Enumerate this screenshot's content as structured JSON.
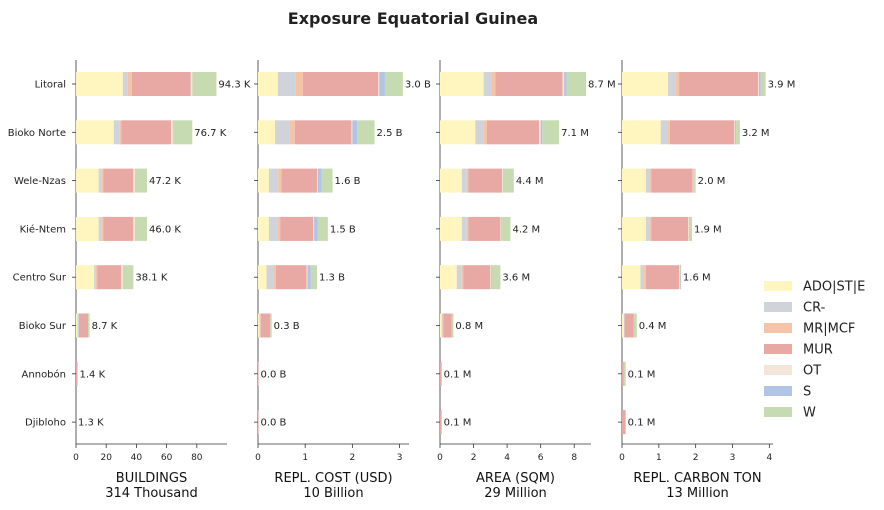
{
  "chart_data": {
    "type": "bar",
    "orientation": "horizontal-stacked",
    "title": "Exposure Equatorial Guinea",
    "categories": [
      "Litoral",
      "Bioko Norte",
      "Wele-Nzas",
      "Kié-Ntem",
      "Centro Sur",
      "Bioko Sur",
      "Annobón",
      "Djibloho"
    ],
    "legend": {
      "placement": "right",
      "entries": [
        {
          "name": "ADO|ST|E",
          "color": "#fff6bf"
        },
        {
          "name": "CR-",
          "color": "#d1d3da"
        },
        {
          "name": "MR|MCF",
          "color": "#f5c4a6"
        },
        {
          "name": "MUR",
          "color": "#e8a8a4"
        },
        {
          "name": "OT",
          "color": "#f3e6d8"
        },
        {
          "name": "S",
          "color": "#b0c4e6"
        },
        {
          "name": "W",
          "color": "#c6dbb1"
        }
      ]
    },
    "panels": [
      {
        "xlabel": "BUILDINGS",
        "xlabel2": "314 Thousand",
        "xlim": [
          0,
          100
        ],
        "ticks": [
          0,
          20,
          40,
          60,
          80
        ],
        "tick_labels": [
          "0",
          "20",
          "40",
          "60",
          "80"
        ],
        "totals_labels": [
          "94.3 K",
          "76.7 K",
          "47.2 K",
          "46.0 K",
          "38.1 K",
          "8.7 K",
          "1.4 K",
          "1.3 K"
        ],
        "segments": [
          [
            31,
            3,
            3,
            39,
            1,
            0,
            16
          ],
          [
            25,
            4,
            1,
            33,
            1,
            0,
            13
          ],
          [
            15,
            2,
            1,
            20,
            1,
            0,
            8
          ],
          [
            15,
            2,
            1,
            20,
            1,
            0,
            8
          ],
          [
            12,
            1,
            1,
            16,
            1,
            0,
            7
          ],
          [
            1,
            1,
            0,
            6,
            0,
            0,
            1
          ],
          [
            0,
            0,
            0,
            1,
            0,
            0,
            0
          ],
          [
            0,
            0,
            0,
            0,
            0,
            0,
            0
          ]
        ]
      },
      {
        "xlabel": "REPL. COST (USD)",
        "xlabel2": "10 Billion",
        "xlim": [
          0,
          3.2
        ],
        "ticks": [
          0,
          1,
          2,
          3
        ],
        "tick_labels": [
          "0",
          "1",
          "2",
          "3"
        ],
        "totals_labels": [
          "3.0 B",
          "2.5 B",
          "1.6 B",
          "1.5 B",
          "1.3 B",
          "0.3 B",
          "0.0 B",
          "0.0 B"
        ],
        "segments": [
          [
            0.42,
            0.38,
            0.15,
            1.6,
            0.02,
            0.12,
            0.38
          ],
          [
            0.36,
            0.32,
            0.1,
            1.2,
            0.02,
            0.1,
            0.37
          ],
          [
            0.23,
            0.2,
            0.07,
            0.75,
            0.02,
            0.08,
            0.23
          ],
          [
            0.23,
            0.18,
            0.06,
            0.7,
            0.02,
            0.07,
            0.22
          ],
          [
            0.18,
            0.15,
            0.05,
            0.65,
            0.02,
            0.07,
            0.13
          ],
          [
            0.03,
            0.02,
            0.01,
            0.2,
            0,
            0,
            0.03
          ],
          [
            0,
            0,
            0,
            0.01,
            0,
            0,
            0
          ],
          [
            0,
            0,
            0,
            0.01,
            0,
            0,
            0
          ]
        ]
      },
      {
        "xlabel": "AREA (SQM)",
        "xlabel2": "29 Million",
        "xlim": [
          0,
          9
        ],
        "ticks": [
          0,
          2,
          4,
          6,
          8
        ],
        "tick_labels": [
          "0",
          "2",
          "4",
          "6",
          "8"
        ],
        "totals_labels": [
          "8.7 M",
          "7.1 M",
          "4.4 M",
          "4.2 M",
          "3.6 M",
          "0.8 M",
          "0.1 M",
          "0.1 M"
        ],
        "segments": [
          [
            2.6,
            0.5,
            0.2,
            4.0,
            0.1,
            0.15,
            1.15
          ],
          [
            2.1,
            0.5,
            0.2,
            3.1,
            0.1,
            0.1,
            1.0
          ],
          [
            1.3,
            0.3,
            0.1,
            2.0,
            0.05,
            0.05,
            0.6
          ],
          [
            1.3,
            0.3,
            0.1,
            1.9,
            0.05,
            0.05,
            0.5
          ],
          [
            1.0,
            0.3,
            0.1,
            1.6,
            0.05,
            0.05,
            0.5
          ],
          [
            0.1,
            0.05,
            0.05,
            0.5,
            0,
            0,
            0.1
          ],
          [
            0,
            0,
            0,
            0.1,
            0,
            0,
            0
          ],
          [
            0,
            0,
            0,
            0.1,
            0,
            0,
            0
          ]
        ]
      },
      {
        "xlabel": "REPL. CARBON TON",
        "xlabel2": "13 Million",
        "xlim": [
          0,
          4.1
        ],
        "ticks": [
          0,
          1,
          2,
          3,
          4
        ],
        "tick_labels": [
          "0",
          "1",
          "2",
          "3",
          "4"
        ],
        "totals_labels": [
          "3.9 M",
          "3.2 M",
          "2.0 M",
          "1.9 M",
          "1.6 M",
          "0.4 M",
          "0.1 M",
          "0.1 M"
        ],
        "segments": [
          [
            1.25,
            0.2,
            0.1,
            2.15,
            0.02,
            0.05,
            0.13
          ],
          [
            1.05,
            0.2,
            0.05,
            1.75,
            0.02,
            0.03,
            0.1
          ],
          [
            0.65,
            0.1,
            0.05,
            1.12,
            0.02,
            0.02,
            0.04
          ],
          [
            0.65,
            0.1,
            0.05,
            1.0,
            0.02,
            0.02,
            0.06
          ],
          [
            0.5,
            0.1,
            0.05,
            0.9,
            0.02,
            0.02,
            0.01
          ],
          [
            0.05,
            0.02,
            0,
            0.25,
            0,
            0,
            0.08
          ],
          [
            0,
            0,
            0,
            0.05,
            0,
            0,
            0.05
          ],
          [
            0,
            0,
            0,
            0.1,
            0,
            0,
            0
          ]
        ]
      }
    ]
  }
}
